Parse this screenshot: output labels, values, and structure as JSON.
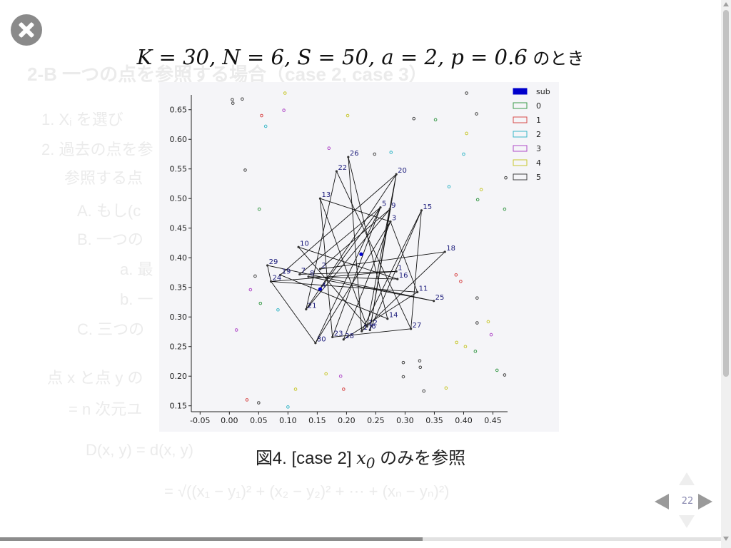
{
  "background_lines": [
    "2-B  一つの点を参照する場合（case 2, case 3）",
    "1.  Xᵢ を選び",
    "2.  過去の点を参",
    "参照する点",
    "A.  もし(c",
    "B.  一つの",
    "a.  最",
    "b.  一",
    "C.  三つの",
    "点 x と点 y の",
    "= n 次元ユ",
    "D(x, y) = d(x, y)",
    "= √((x₁ − y₁)² + (x₂ − y₂)² + ⋯ + (xₙ − yₙ)²)"
  ],
  "slide": {
    "title_math": "K = 30, N = 6, S = 50, a = 2, p = 0.6",
    "title_suffix": " のとき",
    "caption_prefix": "図4. [case 2] ",
    "caption_math": "x",
    "caption_sub": "0",
    "caption_suffix": " のみを参照",
    "page_number": "22"
  },
  "colors": {
    "sub": "#0000cc",
    "edge": "#111111",
    "label": "#1a1a7a",
    "legend_0": "#3a9a4a",
    "legend_1": "#d84a4a",
    "legend_2": "#3ab8c8",
    "legend_3": "#b04ac8",
    "legend_4": "#c8c830",
    "legend_5": "#444444"
  },
  "chart_data": {
    "type": "scatter",
    "title": "",
    "xlabel": "",
    "ylabel": "",
    "xlim": [
      -0.065,
      0.475
    ],
    "ylim": [
      0.14,
      0.675
    ],
    "xticks": [
      "-0.05",
      "0.00",
      "0.05",
      "0.10",
      "0.15",
      "0.20",
      "0.25",
      "0.30",
      "0.35",
      "0.40",
      "0.45"
    ],
    "xtick_values": [
      -0.05,
      0.0,
      0.05,
      0.1,
      0.15,
      0.2,
      0.25,
      0.3,
      0.35,
      0.4,
      0.45
    ],
    "yticks": [
      "0.15",
      "0.20",
      "0.25",
      "0.30",
      "0.35",
      "0.40",
      "0.45",
      "0.50",
      "0.55",
      "0.60",
      "0.65"
    ],
    "ytick_values": [
      0.15,
      0.2,
      0.25,
      0.3,
      0.35,
      0.4,
      0.45,
      0.5,
      0.55,
      0.6,
      0.65
    ],
    "legend": [
      "sub",
      "0",
      "1",
      "2",
      "3",
      "4",
      "5"
    ],
    "legend_position": "top-right",
    "numbered_points": [
      {
        "label": "1",
        "x": 0.285,
        "y": 0.377
      },
      {
        "label": "2",
        "x": 0.155,
        "y": 0.381
      },
      {
        "label": "3",
        "x": 0.275,
        "y": 0.461
      },
      {
        "label": "4",
        "x": 0.155,
        "y": 0.347
      },
      {
        "label": "5",
        "x": 0.258,
        "y": 0.485
      },
      {
        "label": "6",
        "x": 0.24,
        "y": 0.278
      },
      {
        "label": "7",
        "x": 0.12,
        "y": 0.372
      },
      {
        "label": "8",
        "x": 0.135,
        "y": 0.368
      },
      {
        "label": "9",
        "x": 0.274,
        "y": 0.482
      },
      {
        "label": "10",
        "x": 0.118,
        "y": 0.418
      },
      {
        "label": "11",
        "x": 0.321,
        "y": 0.342
      },
      {
        "label": "12",
        "x": 0.235,
        "y": 0.284
      },
      {
        "label": "13",
        "x": 0.155,
        "y": 0.5
      },
      {
        "label": "14",
        "x": 0.27,
        "y": 0.297
      },
      {
        "label": "15",
        "x": 0.328,
        "y": 0.48
      },
      {
        "label": "16",
        "x": 0.287,
        "y": 0.364
      },
      {
        "label": "17",
        "x": 0.226,
        "y": 0.276
      },
      {
        "label": "18",
        "x": 0.368,
        "y": 0.41
      },
      {
        "label": "19",
        "x": 0.087,
        "y": 0.371
      },
      {
        "label": "20",
        "x": 0.285,
        "y": 0.541
      },
      {
        "label": "21",
        "x": 0.131,
        "y": 0.313
      },
      {
        "label": "22",
        "x": 0.183,
        "y": 0.546
      },
      {
        "label": "23",
        "x": 0.176,
        "y": 0.266
      },
      {
        "label": "24",
        "x": 0.071,
        "y": 0.36
      },
      {
        "label": "25",
        "x": 0.349,
        "y": 0.327
      },
      {
        "label": "26",
        "x": 0.203,
        "y": 0.57
      },
      {
        "label": "27",
        "x": 0.31,
        "y": 0.28
      },
      {
        "label": "28",
        "x": 0.195,
        "y": 0.262
      },
      {
        "label": "29",
        "x": 0.065,
        "y": 0.387
      },
      {
        "label": "30",
        "x": 0.147,
        "y": 0.256
      }
    ],
    "sub_points": [
      {
        "x": 0.225,
        "y": 0.406
      },
      {
        "x": 0.155,
        "y": 0.347
      }
    ],
    "edges": [
      [
        "2",
        "18"
      ],
      [
        "2",
        "9"
      ],
      [
        "3",
        "30"
      ],
      [
        "3",
        "28"
      ],
      [
        "3",
        "11"
      ],
      [
        "3",
        "13"
      ],
      [
        "5",
        "4"
      ],
      [
        "5",
        "23"
      ],
      [
        "5",
        "30"
      ],
      [
        "6",
        "15"
      ],
      [
        "6",
        "20"
      ],
      [
        "7",
        "1"
      ],
      [
        "7",
        "5"
      ],
      [
        "8",
        "25"
      ],
      [
        "8",
        "16"
      ],
      [
        "9",
        "21"
      ],
      [
        "9",
        "6"
      ],
      [
        "10",
        "16"
      ],
      [
        "10",
        "12"
      ],
      [
        "11",
        "24"
      ],
      [
        "11",
        "28"
      ],
      [
        "12",
        "20"
      ],
      [
        "12",
        "13"
      ],
      [
        "13",
        "23"
      ],
      [
        "14",
        "26"
      ],
      [
        "14",
        "19"
      ],
      [
        "15",
        "27"
      ],
      [
        "17",
        "18"
      ],
      [
        "17",
        "26"
      ],
      [
        "19",
        "20"
      ],
      [
        "20",
        "21"
      ],
      [
        "21",
        "22"
      ],
      [
        "22",
        "27"
      ],
      [
        "24",
        "29"
      ],
      [
        "24",
        "1"
      ],
      [
        "24",
        "30"
      ],
      [
        "25",
        "29"
      ],
      [
        "27",
        "23"
      ],
      [
        "15",
        "17"
      ]
    ],
    "bg_points": [
      {
        "x": 0.005,
        "y": 0.667,
        "c": 5
      },
      {
        "x": 0.006,
        "y": 0.661,
        "c": 5
      },
      {
        "x": 0.022,
        "y": 0.668,
        "c": 5
      },
      {
        "x": 0.095,
        "y": 0.678,
        "c": 4
      },
      {
        "x": 0.055,
        "y": 0.64,
        "c": 1
      },
      {
        "x": 0.093,
        "y": 0.649,
        "c": 3
      },
      {
        "x": 0.062,
        "y": 0.622,
        "c": 2
      },
      {
        "x": 0.202,
        "y": 0.64,
        "c": 4
      },
      {
        "x": 0.315,
        "y": 0.635,
        "c": 5
      },
      {
        "x": 0.352,
        "y": 0.633,
        "c": 0
      },
      {
        "x": 0.405,
        "y": 0.678,
        "c": 5
      },
      {
        "x": 0.422,
        "y": 0.643,
        "c": 5
      },
      {
        "x": 0.405,
        "y": 0.61,
        "c": 4
      },
      {
        "x": 0.17,
        "y": 0.585,
        "c": 3
      },
      {
        "x": 0.248,
        "y": 0.575,
        "c": 5
      },
      {
        "x": 0.276,
        "y": 0.578,
        "c": 2
      },
      {
        "x": 0.4,
        "y": 0.575,
        "c": 2
      },
      {
        "x": 0.027,
        "y": 0.548,
        "c": 5
      },
      {
        "x": 0.472,
        "y": 0.535,
        "c": 5
      },
      {
        "x": 0.375,
        "y": 0.52,
        "c": 2
      },
      {
        "x": 0.43,
        "y": 0.515,
        "c": 4
      },
      {
        "x": 0.424,
        "y": 0.498,
        "c": 0
      },
      {
        "x": 0.051,
        "y": 0.482,
        "c": 0
      },
      {
        "x": 0.47,
        "y": 0.482,
        "c": 0
      },
      {
        "x": 0.044,
        "y": 0.369,
        "c": 5
      },
      {
        "x": 0.036,
        "y": 0.346,
        "c": 3
      },
      {
        "x": 0.387,
        "y": 0.371,
        "c": 1
      },
      {
        "x": 0.395,
        "y": 0.36,
        "c": 1
      },
      {
        "x": 0.423,
        "y": 0.332,
        "c": 5
      },
      {
        "x": 0.053,
        "y": 0.323,
        "c": 0
      },
      {
        "x": 0.083,
        "y": 0.312,
        "c": 2
      },
      {
        "x": 0.423,
        "y": 0.29,
        "c": 5
      },
      {
        "x": 0.442,
        "y": 0.292,
        "c": 4
      },
      {
        "x": 0.447,
        "y": 0.27,
        "c": 3
      },
      {
        "x": 0.012,
        "y": 0.278,
        "c": 3
      },
      {
        "x": 0.388,
        "y": 0.257,
        "c": 4
      },
      {
        "x": 0.403,
        "y": 0.25,
        "c": 4
      },
      {
        "x": 0.42,
        "y": 0.242,
        "c": 0
      },
      {
        "x": 0.297,
        "y": 0.223,
        "c": 5
      },
      {
        "x": 0.325,
        "y": 0.226,
        "c": 5
      },
      {
        "x": 0.326,
        "y": 0.215,
        "c": 5
      },
      {
        "x": 0.457,
        "y": 0.21,
        "c": 0
      },
      {
        "x": 0.47,
        "y": 0.202,
        "c": 5
      },
      {
        "x": 0.165,
        "y": 0.204,
        "c": 4
      },
      {
        "x": 0.19,
        "y": 0.2,
        "c": 3
      },
      {
        "x": 0.297,
        "y": 0.199,
        "c": 5
      },
      {
        "x": 0.113,
        "y": 0.178,
        "c": 4
      },
      {
        "x": 0.195,
        "y": 0.178,
        "c": 1
      },
      {
        "x": 0.332,
        "y": 0.175,
        "c": 5
      },
      {
        "x": 0.37,
        "y": 0.18,
        "c": 4
      },
      {
        "x": 0.03,
        "y": 0.16,
        "c": 1
      },
      {
        "x": 0.05,
        "y": 0.155,
        "c": 5
      },
      {
        "x": 0.1,
        "y": 0.148,
        "c": 2
      }
    ]
  }
}
